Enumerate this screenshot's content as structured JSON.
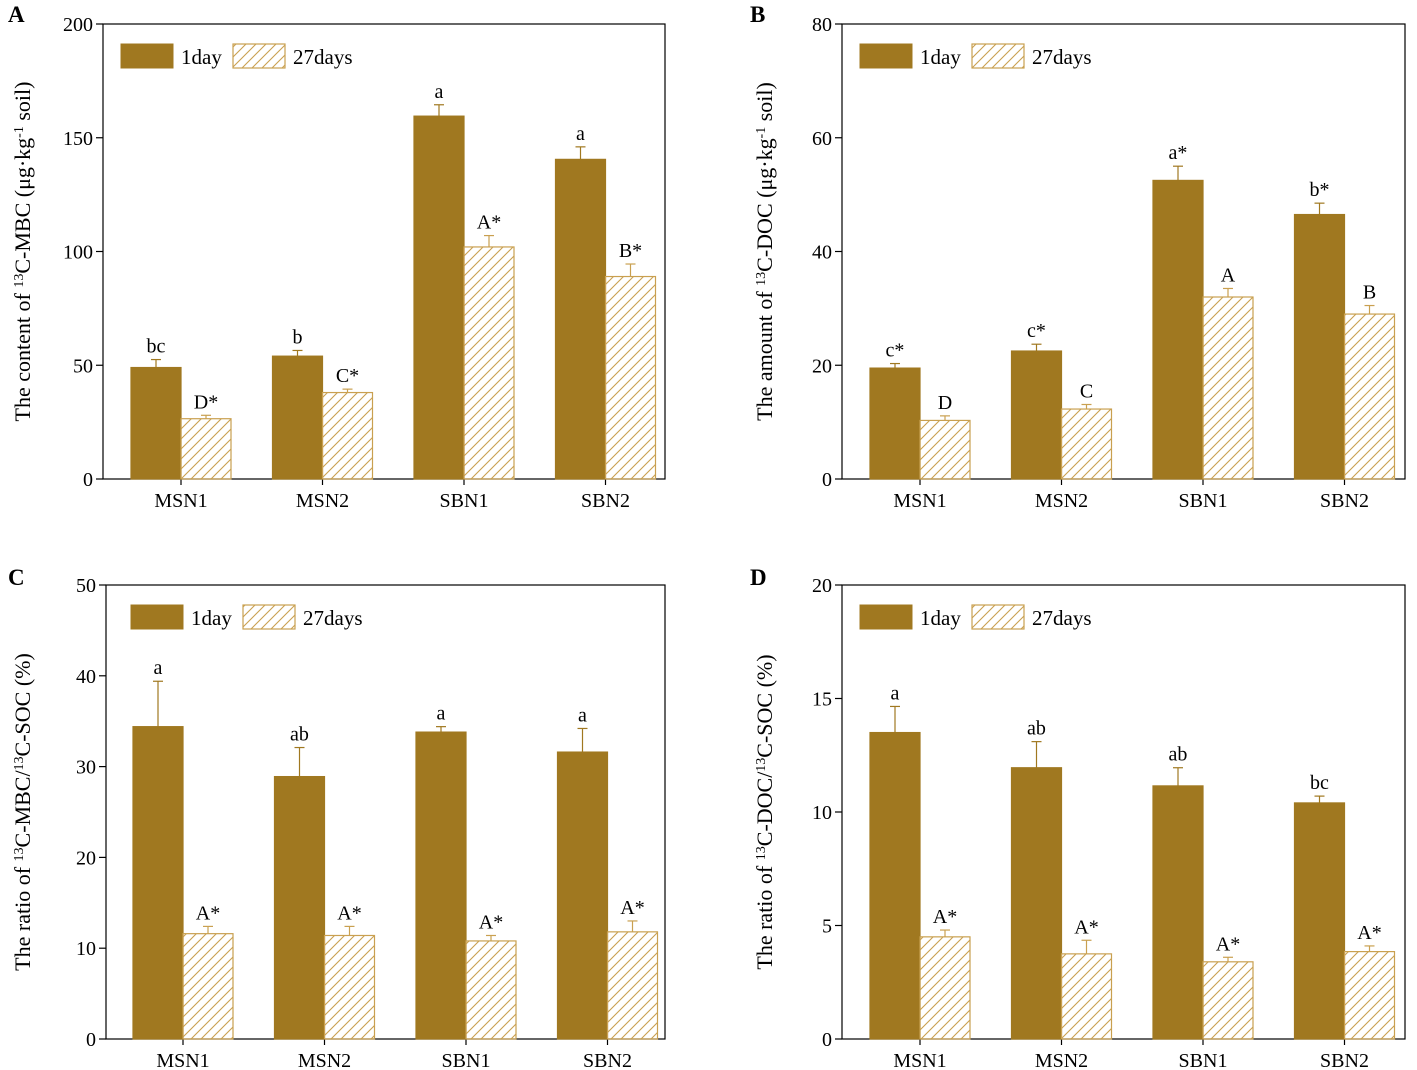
{
  "colors": {
    "solid": "#a07820",
    "hatch": "#c9a050",
    "axis": "#000000"
  },
  "legend": {
    "series1": "1day",
    "series2": "27days"
  },
  "chart_data": [
    {
      "panel": "A",
      "type": "bar",
      "title": "",
      "ylabel_pre": "The content of ",
      "ylabel_sup": "13",
      "ylabel_post": "C-MBC (μg·kg",
      "ylabel_sup2": "-1",
      "ylabel_end": " soil)",
      "xlabel": "",
      "categories": [
        "MSN1",
        "MSN2",
        "SBN1",
        "SBN2"
      ],
      "ylim": [
        0,
        200
      ],
      "yticks": [
        "0",
        "50",
        "100",
        "150",
        "200"
      ],
      "ytick_values": [
        0,
        50,
        100,
        150,
        200
      ],
      "series": [
        {
          "name": "1day",
          "values": [
            49,
            54,
            159.5,
            140.5
          ],
          "errors": [
            3.5,
            2.5,
            5,
            5.5
          ],
          "labels": [
            "bc",
            "b",
            "a",
            "a"
          ]
        },
        {
          "name": "27days",
          "values": [
            26.5,
            38,
            102,
            89
          ],
          "errors": [
            1.5,
            1.5,
            5,
            5.5
          ],
          "labels": [
            "D*",
            "C*",
            "A*",
            "B*"
          ]
        }
      ]
    },
    {
      "panel": "B",
      "type": "bar",
      "title": "",
      "ylabel_pre": "The amount of ",
      "ylabel_sup": "13",
      "ylabel_post": "C-DOC (μg·kg",
      "ylabel_sup2": "-1",
      "ylabel_end": " soil)",
      "xlabel": "",
      "categories": [
        "MSN1",
        "MSN2",
        "SBN1",
        "SBN2"
      ],
      "ylim": [
        0,
        80
      ],
      "yticks": [
        "0",
        "20",
        "40",
        "60",
        "80"
      ],
      "ytick_values": [
        0,
        20,
        40,
        60,
        80
      ],
      "series": [
        {
          "name": "1day",
          "values": [
            19.5,
            22.5,
            52.5,
            46.5
          ],
          "errors": [
            0.8,
            1.2,
            2.5,
            2.0
          ],
          "labels": [
            "c*",
            "c*",
            "a*",
            "b*"
          ]
        },
        {
          "name": "27days",
          "values": [
            10.3,
            12.3,
            32,
            29
          ],
          "errors": [
            0.8,
            0.8,
            1.5,
            1.5
          ],
          "labels": [
            "D",
            "C",
            "A",
            "B"
          ]
        }
      ]
    },
    {
      "panel": "C",
      "type": "bar",
      "title": "",
      "ylabel_pre": "The ratio of ",
      "ylabel_sup": "13",
      "ylabel_post": "C-MBC/",
      "ylabel_sup2": "13",
      "ylabel_end": "C-SOC (%)",
      "xlabel": "",
      "categories": [
        "MSN1",
        "MSN2",
        "SBN1",
        "SBN2"
      ],
      "ylim": [
        0,
        50
      ],
      "yticks": [
        "0",
        "10",
        "20",
        "30",
        "40",
        "50"
      ],
      "ytick_values": [
        0,
        10,
        20,
        30,
        40,
        50
      ],
      "series": [
        {
          "name": "1day",
          "values": [
            34.4,
            28.9,
            33.8,
            31.6
          ],
          "errors": [
            5,
            3.2,
            0.6,
            2.6
          ],
          "labels": [
            "a",
            "ab",
            "a",
            "a"
          ]
        },
        {
          "name": "27days",
          "values": [
            11.6,
            11.4,
            10.8,
            11.8
          ],
          "errors": [
            0.8,
            1.0,
            0.6,
            1.2
          ],
          "labels": [
            "A*",
            "A*",
            "A*",
            "A*"
          ]
        }
      ]
    },
    {
      "panel": "D",
      "type": "bar",
      "title": "",
      "ylabel_pre": "The ratio of ",
      "ylabel_sup": "13",
      "ylabel_post": "C-DOC/",
      "ylabel_sup2": "13",
      "ylabel_end": "C-SOC (%)",
      "xlabel": "",
      "categories": [
        "MSN1",
        "MSN2",
        "SBN1",
        "SBN2"
      ],
      "ylim": [
        0,
        20
      ],
      "yticks": [
        "0",
        "5",
        "10",
        "15",
        "20"
      ],
      "ytick_values": [
        0,
        5,
        10,
        15,
        20
      ],
      "series": [
        {
          "name": "1day",
          "values": [
            13.5,
            11.95,
            11.15,
            10.4
          ],
          "errors": [
            1.15,
            1.15,
            0.8,
            0.3
          ],
          "labels": [
            "a",
            "ab",
            "ab",
            "bc"
          ]
        },
        {
          "name": "27days",
          "values": [
            4.5,
            3.75,
            3.4,
            3.85
          ],
          "errors": [
            0.3,
            0.6,
            0.2,
            0.25
          ],
          "labels": [
            "A*",
            "A*",
            "A*",
            "A*"
          ]
        }
      ]
    }
  ]
}
